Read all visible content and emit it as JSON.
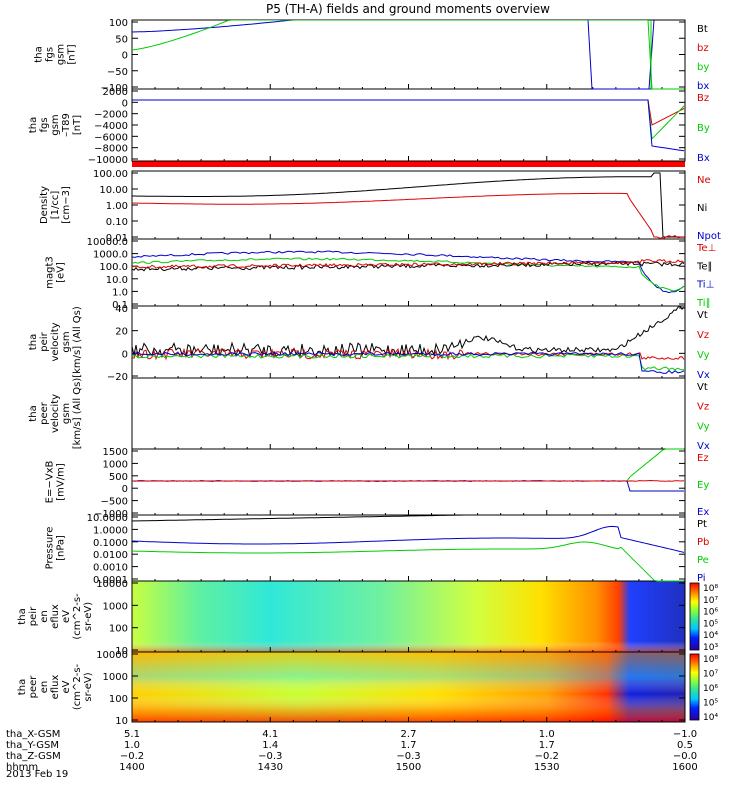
{
  "chart_data": {
    "type": "line",
    "title": "P5 (TH-A) fields and ground moments overview",
    "panels": [
      {
        "id": "fgs",
        "ylabel": [
          "tha",
          "fgs",
          "gsm",
          "[nT]"
        ],
        "yticks": [
          "100",
          "50",
          "0",
          "−50",
          "−100"
        ],
        "legend": [
          {
            "name": "Bt",
            "color": "#000000"
          },
          {
            "name": "bz",
            "color": "#dd0000"
          },
          {
            "name": "by",
            "color": "#00cc00"
          },
          {
            "name": "bx",
            "color": "#0000cc"
          }
        ]
      },
      {
        "id": "fgs_big",
        "ylabel": [
          "tha",
          "fgs",
          "gsm",
          "–T89",
          "[nT]"
        ],
        "yticks": [
          "2000",
          "0",
          "−2000",
          "−4000",
          "−6000",
          "−8000",
          "−10000"
        ],
        "legend": [
          {
            "name": "Bz",
            "color": "#dd0000"
          },
          {
            "name": "By",
            "color": "#00cc00"
          },
          {
            "name": "Bx",
            "color": "#0000cc"
          }
        ]
      },
      {
        "id": "density",
        "ylabel": [
          "Density",
          "[1/cc]",
          "[cm−3]"
        ],
        "yticks": [
          "100.00",
          "10.00",
          "1.00",
          "0.10",
          "0.01"
        ],
        "legend": [
          {
            "name": "Ne",
            "color": "#dd0000"
          },
          {
            "name": "Ni",
            "color": "#000000"
          },
          {
            "name": "Npot",
            "color": "#0000cc"
          }
        ]
      },
      {
        "id": "temp",
        "ylabel": [
          "magt3",
          "[eV]"
        ],
        "yticks": [
          "10000.0",
          "1000.0",
          "100.0",
          "10.0",
          "1.0",
          "0.1"
        ],
        "legend": [
          {
            "name": "Te⊥",
            "color": "#dd0000"
          },
          {
            "name": "Te∥",
            "color": "#000000"
          },
          {
            "name": "Ti⊥",
            "color": "#0000cc"
          },
          {
            "name": "Ti∥",
            "color": "#00cc00"
          }
        ]
      },
      {
        "id": "peir_vel",
        "ylabel": [
          "tha",
          "peir",
          "velocity",
          "gsm",
          "[km/s] (All Qs)"
        ],
        "yticks": [
          "40",
          "20",
          "0",
          "−20"
        ],
        "legend": [
          {
            "name": "Vt",
            "color": "#000000"
          },
          {
            "name": "Vz",
            "color": "#dd0000"
          },
          {
            "name": "Vy",
            "color": "#00cc00"
          },
          {
            "name": "Vx",
            "color": "#0000cc"
          }
        ]
      },
      {
        "id": "peer_vel",
        "ylabel": [
          "tha",
          "peer",
          "velocity",
          "gsm",
          "[km/s] (All Qs)"
        ],
        "yticks": [],
        "legend": [
          {
            "name": "Vt",
            "color": "#000000"
          },
          {
            "name": "Vz",
            "color": "#dd0000"
          },
          {
            "name": "Vy",
            "color": "#00cc00"
          },
          {
            "name": "Vx",
            "color": "#0000cc"
          }
        ]
      },
      {
        "id": "efield",
        "ylabel": [
          "E=−VxB",
          "[mV/m]"
        ],
        "yticks": [
          "1500",
          "1000",
          "500",
          "0",
          "−500",
          "−1000"
        ],
        "legend": [
          {
            "name": "Ez",
            "color": "#dd0000"
          },
          {
            "name": "Ey",
            "color": "#00cc00"
          },
          {
            "name": "Ex",
            "color": "#0000cc"
          }
        ]
      },
      {
        "id": "pressure",
        "ylabel": [
          "Pressure",
          "[nPa]"
        ],
        "yticks": [
          "10.0000",
          "1.0000",
          "0.1000",
          "0.0100",
          "0.0010",
          "0.0001"
        ],
        "legend": [
          {
            "name": "Pt",
            "color": "#000000"
          },
          {
            "name": "Pb",
            "color": "#dd0000"
          },
          {
            "name": "Pe",
            "color": "#00cc00"
          },
          {
            "name": "Pi",
            "color": "#0000cc"
          }
        ]
      },
      {
        "id": "peir_eflux",
        "ylabel": [
          "tha",
          "peir",
          "en",
          "eflux",
          "eV",
          "(cm^2-s-",
          "sr-eV)"
        ],
        "yticks": [
          "10000",
          "1000",
          "100",
          "10"
        ],
        "colorbar": [
          "10⁸",
          "10⁷",
          "10⁶",
          "10⁵",
          "10⁴",
          "10³"
        ]
      },
      {
        "id": "peer_eflux",
        "ylabel": [
          "tha",
          "peer",
          "en",
          "eflux",
          "eV",
          "(cm^2-s-",
          "sr-eV)"
        ],
        "yticks": [
          "10000",
          "1000",
          "100",
          "10"
        ],
        "colorbar": [
          "10⁸",
          "10⁷",
          "10⁶",
          "10⁵",
          "10⁴"
        ]
      }
    ],
    "x_axis": {
      "rows": [
        {
          "label": "tha_X-GSM",
          "values": [
            "5.1",
            "4.1",
            "2.7",
            "1.0",
            "−1.0"
          ]
        },
        {
          "label": "tha_Y-GSM",
          "values": [
            "1.0",
            "1.4",
            "1.7",
            "1.7",
            "0.5"
          ]
        },
        {
          "label": "tha_Z-GSM",
          "values": [
            "−0.2",
            "−0.3",
            "−0.3",
            "−0.2",
            "−0.0"
          ]
        },
        {
          "label": "hhmm",
          "values": [
            "1400",
            "1430",
            "1500",
            "1530",
            "1600"
          ]
        }
      ],
      "date": "2013 Feb 19"
    }
  }
}
